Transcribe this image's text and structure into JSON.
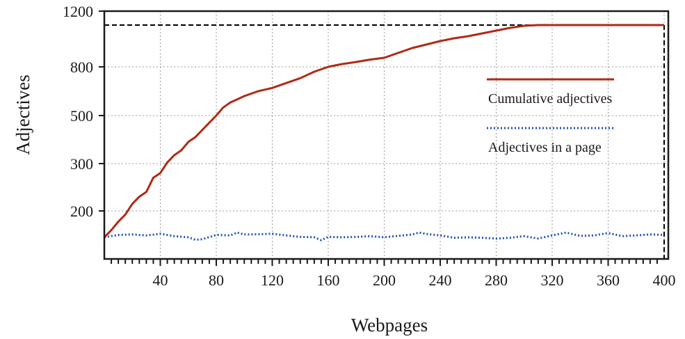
{
  "chart_data": {
    "type": "line",
    "xlabel": "Webpages",
    "ylabel": "Adjectives",
    "xlim": [
      0,
      400
    ],
    "ylim": [
      0,
      1200
    ],
    "x_ticks": [
      "40",
      "80",
      "120",
      "160",
      "200",
      "240",
      "280",
      "320",
      "360",
      "400"
    ],
    "y_ticks": [
      "200",
      "300",
      "500",
      "800",
      "1200"
    ],
    "y_tick_values": [
      200,
      300,
      500,
      800,
      1200
    ],
    "grid": true,
    "legend_position": "right",
    "reference_line": {
      "y": 1100,
      "x_end": 400,
      "style": "dashed",
      "color": "#000000"
    },
    "series": [
      {
        "name": "Cumulative adjectives",
        "color": "#b02a16",
        "style": "solid",
        "x": [
          0,
          5,
          10,
          15,
          20,
          25,
          30,
          35,
          40,
          45,
          50,
          55,
          60,
          65,
          70,
          75,
          80,
          85,
          90,
          95,
          100,
          110,
          120,
          130,
          140,
          150,
          160,
          170,
          180,
          190,
          200,
          210,
          220,
          230,
          240,
          250,
          260,
          270,
          280,
          290,
          300,
          310,
          320,
          360,
          400
        ],
        "y": [
          90,
          120,
          155,
          185,
          215,
          230,
          240,
          270,
          280,
          305,
          335,
          355,
          390,
          410,
          440,
          470,
          500,
          550,
          580,
          600,
          620,
          650,
          670,
          700,
          730,
          770,
          800,
          820,
          835,
          852,
          865,
          900,
          935,
          960,
          985,
          1005,
          1020,
          1040,
          1060,
          1080,
          1095,
          1100,
          1100,
          1100,
          1100
        ]
      },
      {
        "name": "Adjectives in a page",
        "color": "#1f4fbf",
        "style": "dotted",
        "x": [
          0,
          10,
          20,
          30,
          40,
          50,
          60,
          65,
          70,
          80,
          90,
          95,
          100,
          110,
          120,
          130,
          140,
          150,
          155,
          160,
          170,
          180,
          190,
          200,
          210,
          220,
          225,
          230,
          240,
          250,
          260,
          270,
          280,
          290,
          300,
          310,
          320,
          330,
          340,
          350,
          360,
          370,
          380,
          390,
          400
        ],
        "y": [
          90,
          100,
          102,
          98,
          105,
          95,
          90,
          80,
          82,
          100,
          98,
          110,
          102,
          103,
          105,
          98,
          92,
          90,
          78,
          92,
          90,
          92,
          95,
          90,
          96,
          102,
          110,
          104,
          98,
          88,
          90,
          88,
          85,
          88,
          95,
          85,
          98,
          110,
          96,
          98,
          108,
          95,
          98,
          102,
          100
        ]
      }
    ]
  }
}
